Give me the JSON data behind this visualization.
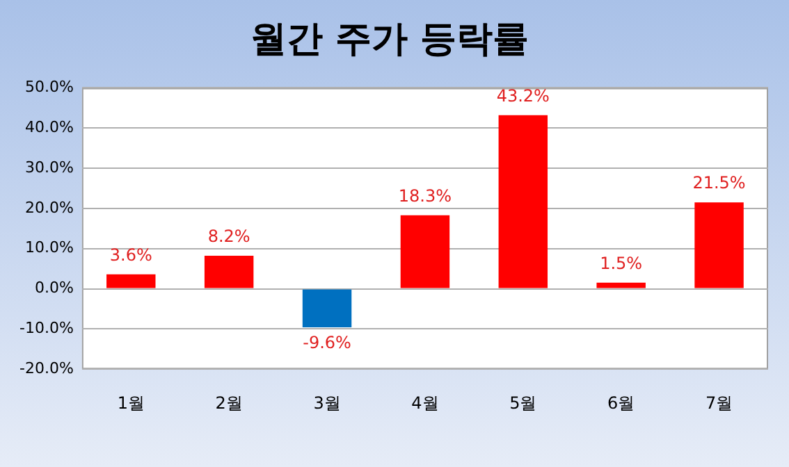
{
  "chart_data": {
    "type": "bar",
    "title": "월간 주가 등락률",
    "categories": [
      "1월",
      "2월",
      "3월",
      "4월",
      "5월",
      "6월",
      "7월"
    ],
    "values": [
      3.6,
      8.2,
      -9.6,
      18.3,
      43.2,
      1.5,
      21.5
    ],
    "colors": [
      "#ff0000",
      "#ff0000",
      "#0070c0",
      "#ff0000",
      "#ff0000",
      "#ff0000",
      "#ff0000"
    ],
    "value_labels": [
      "3.6%",
      "8.2%",
      "-9.6%",
      "18.3%",
      "43.2%",
      "1.5%",
      "21.5%"
    ],
    "ylim": [
      -20,
      50
    ],
    "yticks": [
      {
        "value": -20,
        "label": "-20.0%"
      },
      {
        "value": -10,
        "label": "-10.0%"
      },
      {
        "value": 0,
        "label": "0.0%"
      },
      {
        "value": 10,
        "label": "10.0%"
      },
      {
        "value": 20,
        "label": "20.0%"
      },
      {
        "value": 30,
        "label": "30.0%"
      },
      {
        "value": 40,
        "label": "40.0%"
      },
      {
        "value": 50,
        "label": "50.0%"
      }
    ],
    "grid": "y",
    "legend": false
  }
}
